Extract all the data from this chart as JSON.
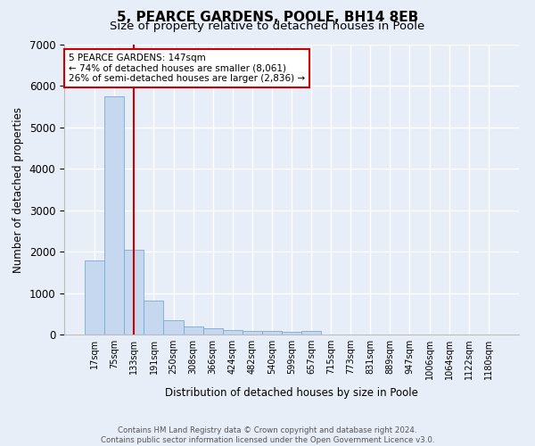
{
  "title": "5, PEARCE GARDENS, POOLE, BH14 8EB",
  "subtitle": "Size of property relative to detached houses in Poole",
  "xlabel": "Distribution of detached houses by size in Poole",
  "ylabel": "Number of detached properties",
  "bar_labels": [
    "17sqm",
    "75sqm",
    "133sqm",
    "191sqm",
    "250sqm",
    "308sqm",
    "366sqm",
    "424sqm",
    "482sqm",
    "540sqm",
    "599sqm",
    "657sqm",
    "715sqm",
    "773sqm",
    "831sqm",
    "889sqm",
    "947sqm",
    "1006sqm",
    "1064sqm",
    "1122sqm",
    "1180sqm"
  ],
  "bar_values": [
    1780,
    5750,
    2050,
    820,
    340,
    190,
    150,
    100,
    95,
    80,
    65,
    90,
    0,
    0,
    0,
    0,
    0,
    0,
    0,
    0,
    0
  ],
  "bar_color": "#c5d8f0",
  "bar_edgecolor": "#7aabcf",
  "vline_x": 2,
  "vline_color": "#cc0000",
  "annotation_text": "5 PEARCE GARDENS: 147sqm\n← 74% of detached houses are smaller (8,061)\n26% of semi-detached houses are larger (2,836) →",
  "annotation_box_color": "#ffffff",
  "annotation_box_edgecolor": "#cc0000",
  "ylim": [
    0,
    7000
  ],
  "yticks": [
    0,
    1000,
    2000,
    3000,
    4000,
    5000,
    6000,
    7000
  ],
  "footer_text": "Contains HM Land Registry data © Crown copyright and database right 2024.\nContains public sector information licensed under the Open Government Licence v3.0.",
  "background_color": "#e8eef8",
  "grid_color": "#ffffff",
  "title_fontsize": 11,
  "subtitle_fontsize": 9.5
}
